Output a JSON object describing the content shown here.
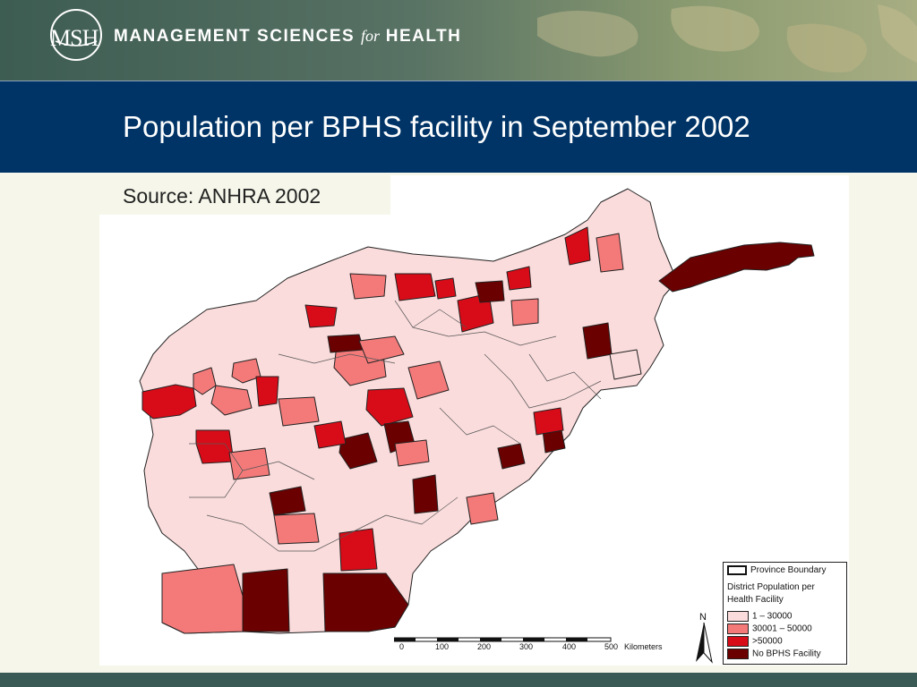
{
  "header": {
    "logo_mark": "MSH",
    "org_name_part1": "Management Sciences",
    "org_name_for": "for",
    "org_name_part2": "Health"
  },
  "slide": {
    "title": "Population per BPHS facility in September 2002",
    "source": "Source: ANHRA 2002"
  },
  "legend": {
    "province_boundary": "Province Boundary",
    "heading_line1": "District Population per",
    "heading_line2": "Health Facility",
    "classes": [
      {
        "label": "1 – 30000",
        "color": "#fbdcdc"
      },
      {
        "label": "30001 – 50000",
        "color": "#f47a7a"
      },
      {
        "label": ">50000",
        "color": "#d80c18"
      },
      {
        "label": "No BPHS Facility",
        "color": "#6a0000"
      }
    ]
  },
  "scale": {
    "ticks": [
      "0",
      "100",
      "200",
      "300",
      "400",
      "500"
    ],
    "unit": "Kilometers"
  },
  "north": "N",
  "colors": {
    "title_band": "#003466",
    "header_green": "#4a6a5c",
    "background": "#f6f7ea",
    "boundary": "#222222"
  }
}
